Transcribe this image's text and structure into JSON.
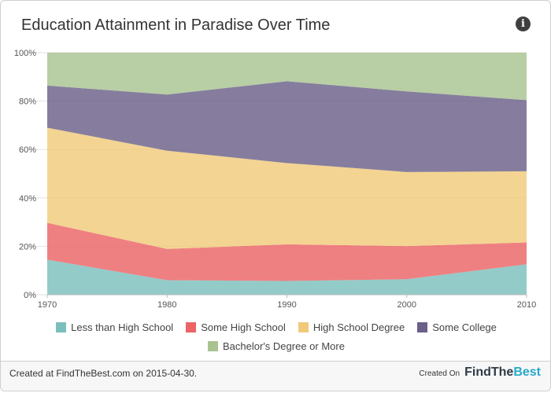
{
  "header": {
    "title": "Education Attainment in Paradise Over Time",
    "info_icon": "info-icon"
  },
  "chart_data": {
    "type": "area",
    "stacked": true,
    "x": [
      1970,
      1980,
      1990,
      2000,
      2010
    ],
    "ylim": [
      0,
      100
    ],
    "y_ticks": [
      "0%",
      "20%",
      "40%",
      "60%",
      "80%",
      "100%"
    ],
    "x_ticks": [
      "1970",
      "1980",
      "1990",
      "2000",
      "2010"
    ],
    "series": [
      {
        "name": "Less than High School",
        "color": "#7bbfbd",
        "values": [
          14.5,
          6.0,
          5.7,
          6.4,
          12.6
        ]
      },
      {
        "name": "Some High School",
        "color": "#eb6466",
        "values": [
          15.2,
          12.9,
          15.1,
          13.7,
          9.0
        ]
      },
      {
        "name": "High School Degree",
        "color": "#f0ca7a",
        "values": [
          39.3,
          40.6,
          33.6,
          30.6,
          29.4
        ]
      },
      {
        "name": "Some College",
        "color": "#6b6089",
        "values": [
          17.4,
          23.2,
          33.8,
          33.3,
          29.4
        ]
      },
      {
        "name": "Bachelor's Degree or More",
        "color": "#a8c390",
        "values": [
          13.6,
          17.3,
          11.8,
          16.0,
          19.6
        ]
      }
    ],
    "legend_position": "bottom",
    "grid": true
  },
  "footer": {
    "created_text": "Created at FindTheBest.com on 2015-04-30.",
    "created_on": "Created On",
    "brand_part1": "FindThe",
    "brand_part2": "Best"
  }
}
